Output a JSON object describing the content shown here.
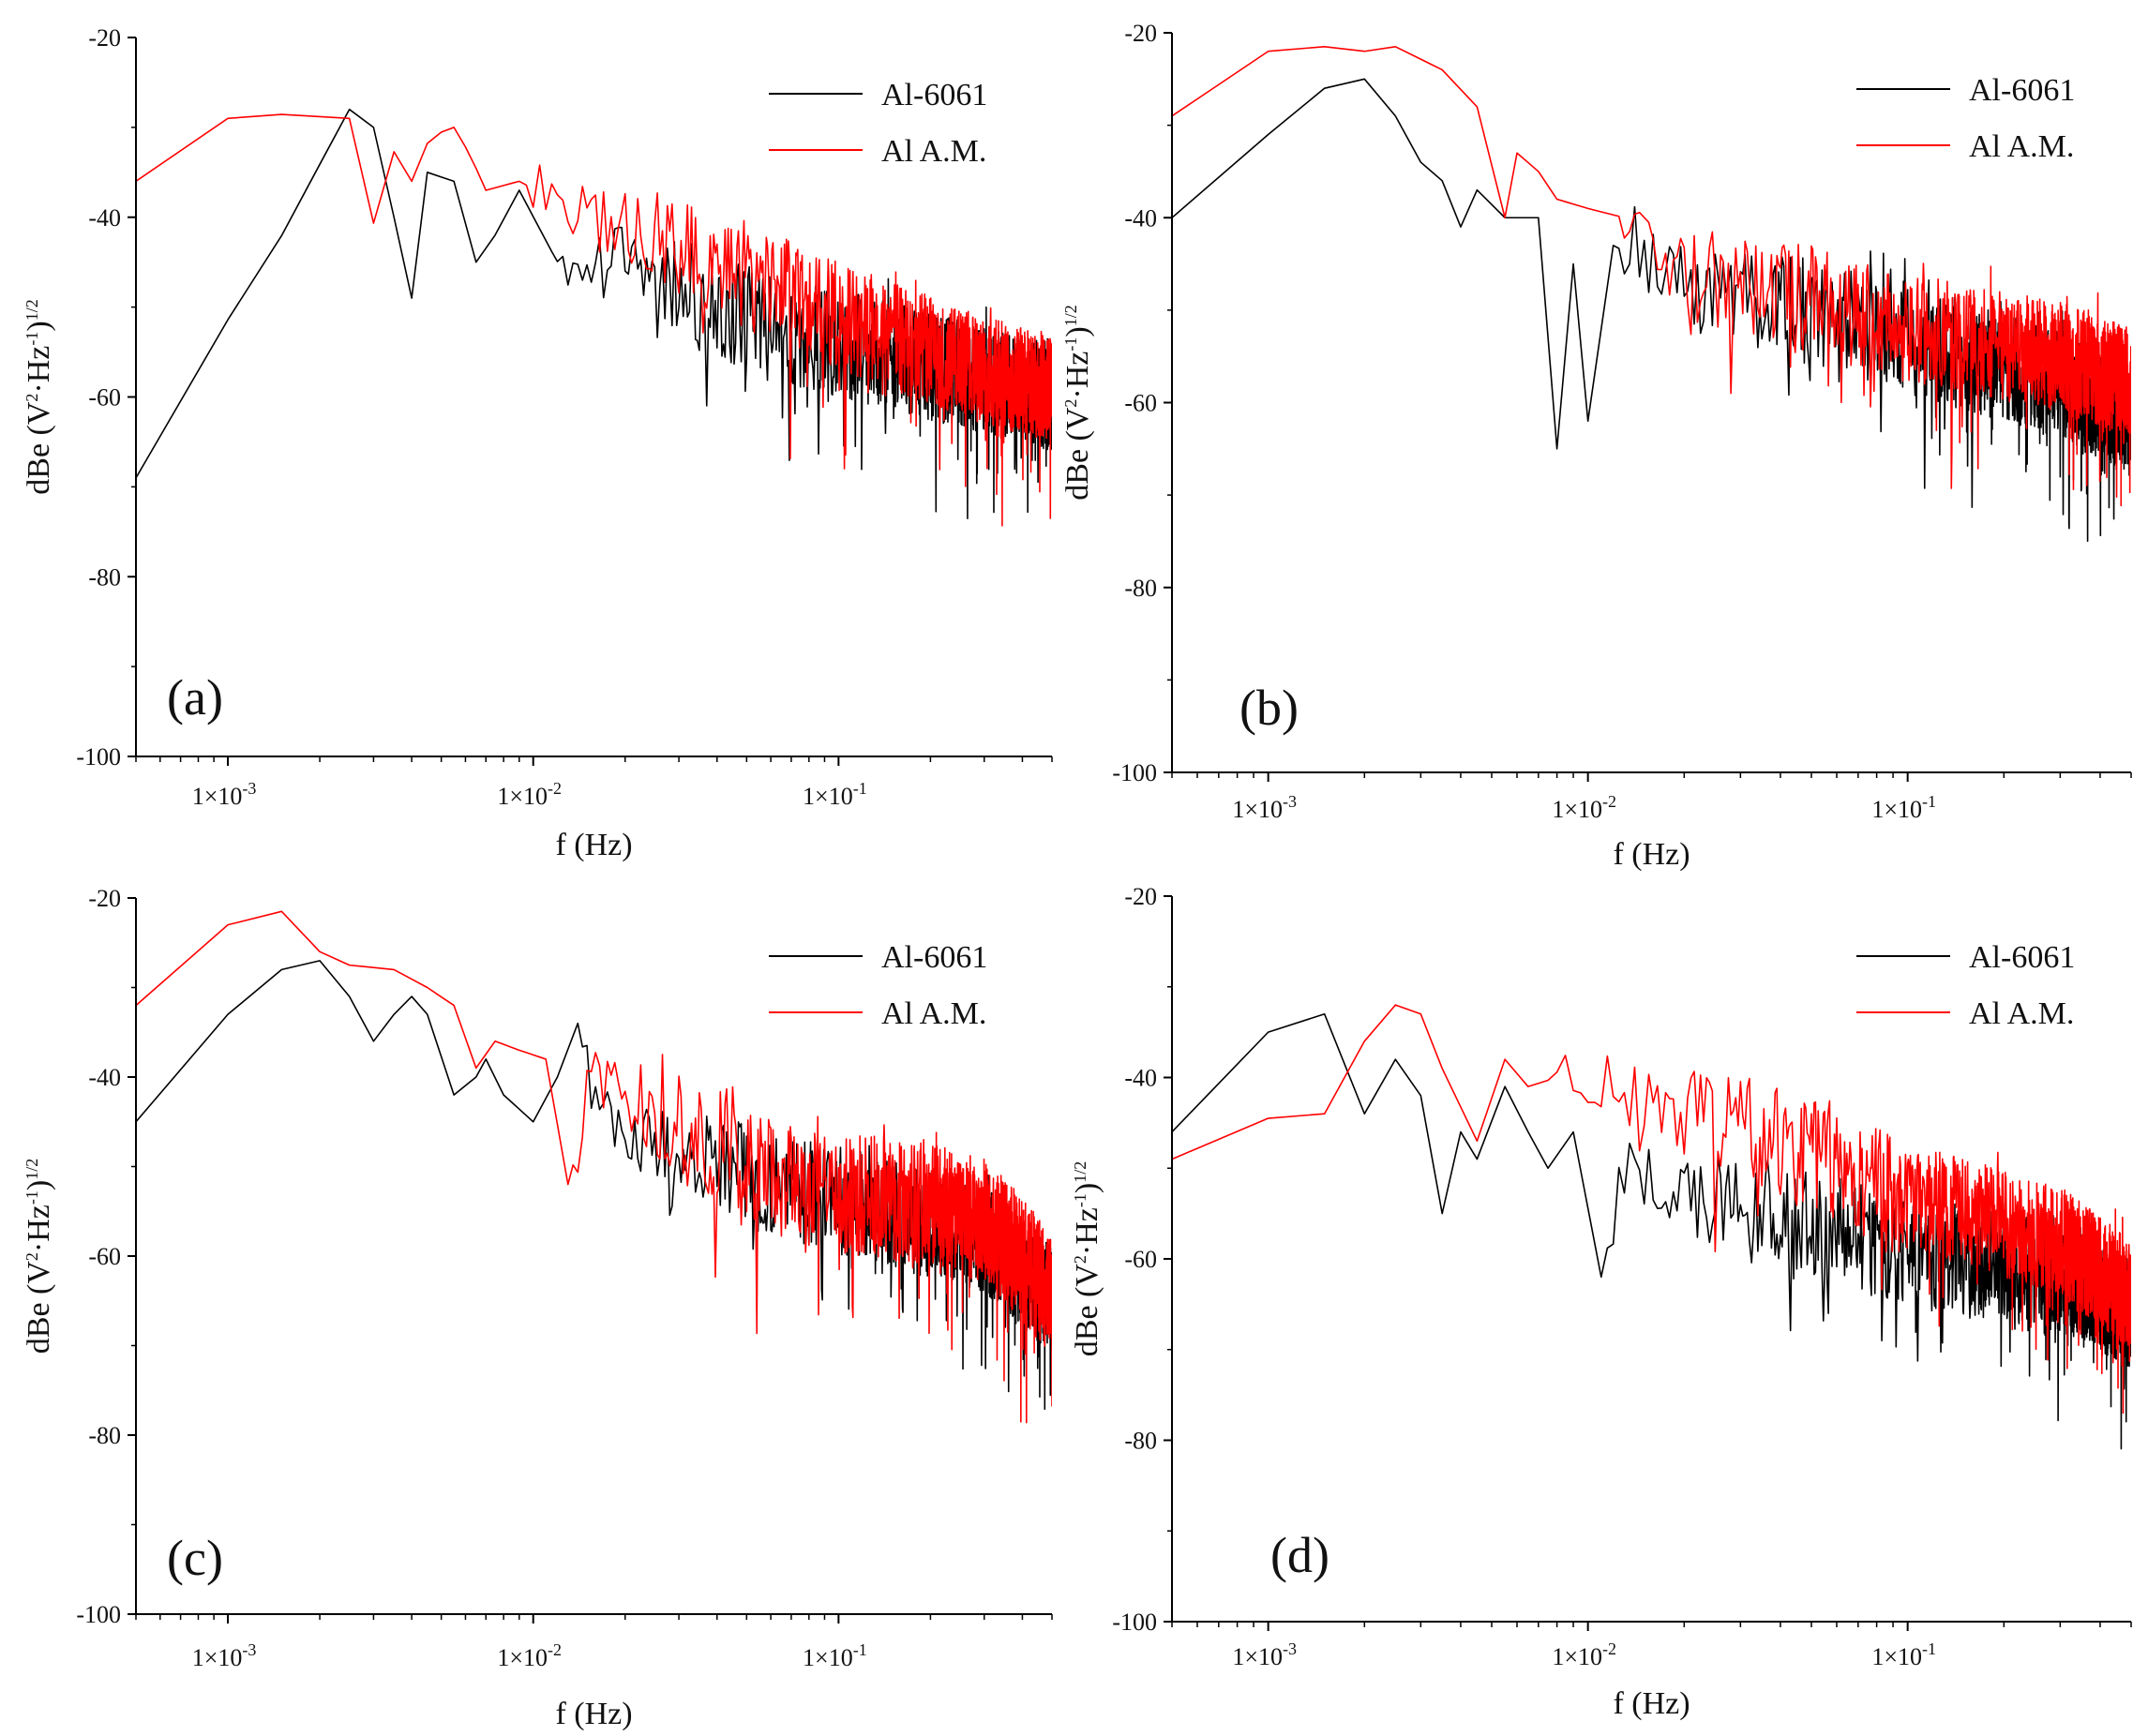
{
  "figure": {
    "colors": {
      "al6061": "#000000",
      "alam": "#ff0000",
      "axis": "#000000",
      "background": "#ffffff"
    }
  },
  "chart_data": [
    {
      "panel": "(a)",
      "type": "line",
      "xscale": "log",
      "xlim": [
        0.0005,
        0.5
      ],
      "ylim": [
        -100,
        -20
      ],
      "xlabel": "f (Hz)",
      "ylabel_parts": {
        "main": "dBe (V",
        "sup1": "2",
        "mid": "·Hz",
        "sup2": "-1",
        "close": ")",
        "sup3": "1/2"
      },
      "yticks": [
        -20,
        -40,
        -60,
        -80,
        -100
      ],
      "ytick_labels": [
        "-20",
        "-40",
        "-60",
        "-80",
        "-100"
      ],
      "xticks": [
        0.001,
        0.01,
        0.1
      ],
      "xtick_labels": [
        {
          "base": "1×10",
          "exp": "-3"
        },
        {
          "base": "1×10",
          "exp": "-2"
        },
        {
          "base": "1×10",
          "exp": "-1"
        }
      ],
      "legend_position": "top-right",
      "series": [
        {
          "name": "Al-6061",
          "color": "#000000",
          "anchors": [
            [
              0.0005,
              -69
            ],
            [
              0.0008,
              -56
            ],
            [
              0.0013,
              -46
            ],
            [
              0.0018,
              -37
            ],
            [
              0.0025,
              -28
            ],
            [
              0.003,
              -30
            ],
            [
              0.0035,
              -40
            ],
            [
              0.004,
              -49
            ],
            [
              0.0045,
              -35
            ],
            [
              0.0055,
              -36
            ],
            [
              0.0065,
              -45
            ],
            [
              0.0075,
              -42
            ],
            [
              0.009,
              -37
            ],
            [
              0.012,
              -45
            ],
            [
              0.02,
              -44
            ],
            [
              0.035,
              -50
            ],
            [
              0.1,
              -54
            ],
            [
              0.5,
              -60
            ]
          ],
          "noise_start": 0.012,
          "noise_amp": 6,
          "spike_depth": 12
        },
        {
          "name": "Al A.M.",
          "color": "#ff0000",
          "anchors": [
            [
              0.0005,
              -36
            ],
            [
              0.001,
              -29
            ],
            [
              0.0014,
              -28.5
            ],
            [
              0.0025,
              -29
            ],
            [
              0.0029,
              -43
            ],
            [
              0.0034,
              -32
            ],
            [
              0.004,
              -36
            ],
            [
              0.0046,
              -31
            ],
            [
              0.0055,
              -30
            ],
            [
              0.0062,
              -33
            ],
            [
              0.007,
              -37
            ],
            [
              0.009,
              -36
            ],
            [
              0.015,
              -40
            ],
            [
              0.025,
              -42
            ],
            [
              0.04,
              -45
            ],
            [
              0.1,
              -51
            ],
            [
              0.3,
              -57
            ],
            [
              0.5,
              -59
            ]
          ],
          "noise_start": 0.01,
          "noise_amp": 6,
          "spike_depth": 13
        }
      ],
      "seed": 11
    },
    {
      "panel": "(b)",
      "type": "line",
      "xscale": "log",
      "xlim": [
        0.0005,
        0.5
      ],
      "ylim": [
        -100,
        -20
      ],
      "xlabel": "f (Hz)",
      "ylabel_parts": {
        "main": "dBe (V",
        "sup1": "2",
        "mid": "·Hz",
        "sup2": "-1",
        "close": ")",
        "sup3": "1/2"
      },
      "yticks": [
        -20,
        -40,
        -60,
        -80,
        -100
      ],
      "ytick_labels": [
        "-20",
        "-40",
        "-60",
        "-80",
        "-100"
      ],
      "xticks": [
        0.001,
        0.01,
        0.1
      ],
      "xtick_labels": [
        {
          "base": "1×10",
          "exp": "-3"
        },
        {
          "base": "1×10",
          "exp": "-2"
        },
        {
          "base": "1×10",
          "exp": "-1"
        }
      ],
      "legend_position": "top-right",
      "series": [
        {
          "name": "Al-6061",
          "color": "#000000",
          "anchors": [
            [
              0.0005,
              -40
            ],
            [
              0.001,
              -31
            ],
            [
              0.0015,
              -26
            ],
            [
              0.002,
              -25
            ],
            [
              0.0025,
              -29
            ],
            [
              0.003,
              -34
            ],
            [
              0.0035,
              -36
            ],
            [
              0.004,
              -41
            ],
            [
              0.0045,
              -37
            ],
            [
              0.0055,
              -40
            ],
            [
              0.007,
              -40
            ],
            [
              0.008,
              -65
            ],
            [
              0.009,
              -45
            ],
            [
              0.01,
              -62
            ],
            [
              0.012,
              -43
            ],
            [
              0.02,
              -47
            ],
            [
              0.05,
              -50
            ],
            [
              0.1,
              -53
            ],
            [
              0.3,
              -58
            ],
            [
              0.5,
              -62
            ]
          ],
          "noise_start": 0.013,
          "noise_amp": 6,
          "spike_depth": 12
        },
        {
          "name": "Al A.M.",
          "color": "#ff0000",
          "anchors": [
            [
              0.0005,
              -29
            ],
            [
              0.001,
              -22
            ],
            [
              0.0015,
              -21.5
            ],
            [
              0.002,
              -22
            ],
            [
              0.0025,
              -21.5
            ],
            [
              0.0035,
              -24
            ],
            [
              0.0045,
              -28
            ],
            [
              0.0055,
              -40
            ],
            [
              0.006,
              -33
            ],
            [
              0.007,
              -35
            ],
            [
              0.008,
              -38
            ],
            [
              0.01,
              -39
            ],
            [
              0.013,
              -40
            ],
            [
              0.02,
              -46
            ],
            [
              0.05,
              -49
            ],
            [
              0.1,
              -52
            ],
            [
              0.3,
              -55
            ],
            [
              0.5,
              -58
            ]
          ],
          "noise_start": 0.013,
          "noise_amp": 6,
          "spike_depth": 12
        }
      ],
      "seed": 23
    },
    {
      "panel": "(c)",
      "type": "line",
      "xscale": "log",
      "xlim": [
        0.0005,
        0.5
      ],
      "ylim": [
        -100,
        -20
      ],
      "xlabel": "f (Hz)",
      "ylabel_parts": {
        "main": "dBe (V",
        "sup1": "2",
        "mid": "·Hz",
        "sup2": "-1",
        "close": ")",
        "sup3": "1/2"
      },
      "yticks": [
        -20,
        -40,
        -60,
        -80,
        -100
      ],
      "ytick_labels": [
        "-20",
        "-40",
        "-60",
        "-80",
        "-100"
      ],
      "xticks": [
        0.001,
        0.01,
        0.1
      ],
      "xtick_labels": [
        {
          "base": "1×10",
          "exp": "-3"
        },
        {
          "base": "1×10",
          "exp": "-2"
        },
        {
          "base": "1×10",
          "exp": "-1"
        }
      ],
      "legend_position": "top-right",
      "series": [
        {
          "name": "Al-6061",
          "color": "#000000",
          "anchors": [
            [
              0.0005,
              -45
            ],
            [
              0.001,
              -33
            ],
            [
              0.0015,
              -28
            ],
            [
              0.002,
              -27
            ],
            [
              0.0025,
              -31
            ],
            [
              0.003,
              -36
            ],
            [
              0.0035,
              -33
            ],
            [
              0.004,
              -31
            ],
            [
              0.0045,
              -33
            ],
            [
              0.0055,
              -42
            ],
            [
              0.0065,
              -40
            ],
            [
              0.007,
              -38
            ],
            [
              0.008,
              -42
            ],
            [
              0.01,
              -45
            ],
            [
              0.012,
              -40
            ],
            [
              0.014,
              -34
            ],
            [
              0.016,
              -44
            ],
            [
              0.02,
              -46
            ],
            [
              0.05,
              -51
            ],
            [
              0.1,
              -54
            ],
            [
              0.3,
              -58
            ],
            [
              0.5,
              -65
            ]
          ],
          "noise_start": 0.015,
          "noise_amp": 6,
          "spike_depth": 13
        },
        {
          "name": "Al A.M.",
          "color": "#ff0000",
          "anchors": [
            [
              0.0005,
              -32
            ],
            [
              0.001,
              -23
            ],
            [
              0.0015,
              -21.5
            ],
            [
              0.002,
              -26
            ],
            [
              0.0025,
              -27.5
            ],
            [
              0.0035,
              -28
            ],
            [
              0.0045,
              -30
            ],
            [
              0.0055,
              -32
            ],
            [
              0.0065,
              -39
            ],
            [
              0.0075,
              -36
            ],
            [
              0.009,
              -37
            ],
            [
              0.011,
              -38
            ],
            [
              0.013,
              -52
            ],
            [
              0.016,
              -40
            ],
            [
              0.025,
              -44
            ],
            [
              0.05,
              -50
            ],
            [
              0.1,
              -53
            ],
            [
              0.2,
              -54
            ],
            [
              0.3,
              -56
            ],
            [
              0.5,
              -64
            ]
          ],
          "noise_start": 0.014,
          "noise_amp": 7,
          "spike_depth": 13
        }
      ],
      "seed": 37
    },
    {
      "panel": "(d)",
      "type": "line",
      "xscale": "log",
      "xlim": [
        0.0005,
        0.5
      ],
      "ylim": [
        -100,
        -20
      ],
      "xlabel": "f (Hz)",
      "ylabel_parts": {
        "main": "dBe (V",
        "sup1": "2",
        "mid": "·Hz",
        "sup2": "-1",
        "close": ")",
        "sup3": "1/2"
      },
      "yticks": [
        -20,
        -40,
        -60,
        -80,
        -100
      ],
      "ytick_labels": [
        "-20",
        "-40",
        "-60",
        "-80",
        "-100"
      ],
      "xticks": [
        0.001,
        0.01,
        0.1
      ],
      "xtick_labels": [
        {
          "base": "1×10",
          "exp": "-3"
        },
        {
          "base": "1×10",
          "exp": "-2"
        },
        {
          "base": "1×10",
          "exp": "-1"
        }
      ],
      "legend_position": "top-right",
      "series": [
        {
          "name": "Al-6061",
          "color": "#000000",
          "anchors": [
            [
              0.0005,
              -46
            ],
            [
              0.001,
              -35
            ],
            [
              0.0015,
              -33
            ],
            [
              0.002,
              -44
            ],
            [
              0.0025,
              -38
            ],
            [
              0.003,
              -42
            ],
            [
              0.0035,
              -55
            ],
            [
              0.004,
              -46
            ],
            [
              0.0045,
              -49
            ],
            [
              0.0055,
              -41
            ],
            [
              0.0065,
              -46
            ],
            [
              0.0075,
              -50
            ],
            [
              0.009,
              -46
            ],
            [
              0.011,
              -62
            ],
            [
              0.013,
              -50
            ],
            [
              0.02,
              -53
            ],
            [
              0.05,
              -56
            ],
            [
              0.1,
              -59
            ],
            [
              0.3,
              -62
            ],
            [
              0.5,
              -66
            ]
          ],
          "noise_start": 0.012,
          "noise_amp": 6,
          "spike_depth": 12
        },
        {
          "name": "Al A.M.",
          "color": "#ff0000",
          "anchors": [
            [
              0.0005,
              -49
            ],
            [
              0.001,
              -44.5
            ],
            [
              0.0015,
              -44
            ],
            [
              0.002,
              -36
            ],
            [
              0.0025,
              -32
            ],
            [
              0.003,
              -33
            ],
            [
              0.0035,
              -39
            ],
            [
              0.0045,
              -47
            ],
            [
              0.0055,
              -38
            ],
            [
              0.0065,
              -41
            ],
            [
              0.008,
              -40
            ],
            [
              0.01,
              -40
            ],
            [
              0.015,
              -43
            ],
            [
              0.025,
              -45
            ],
            [
              0.04,
              -47
            ],
            [
              0.1,
              -53
            ],
            [
              0.3,
              -58
            ],
            [
              0.5,
              -64
            ]
          ],
          "noise_start": 0.008,
          "noise_amp": 6,
          "spike_depth": 12
        }
      ],
      "seed": 53
    }
  ]
}
